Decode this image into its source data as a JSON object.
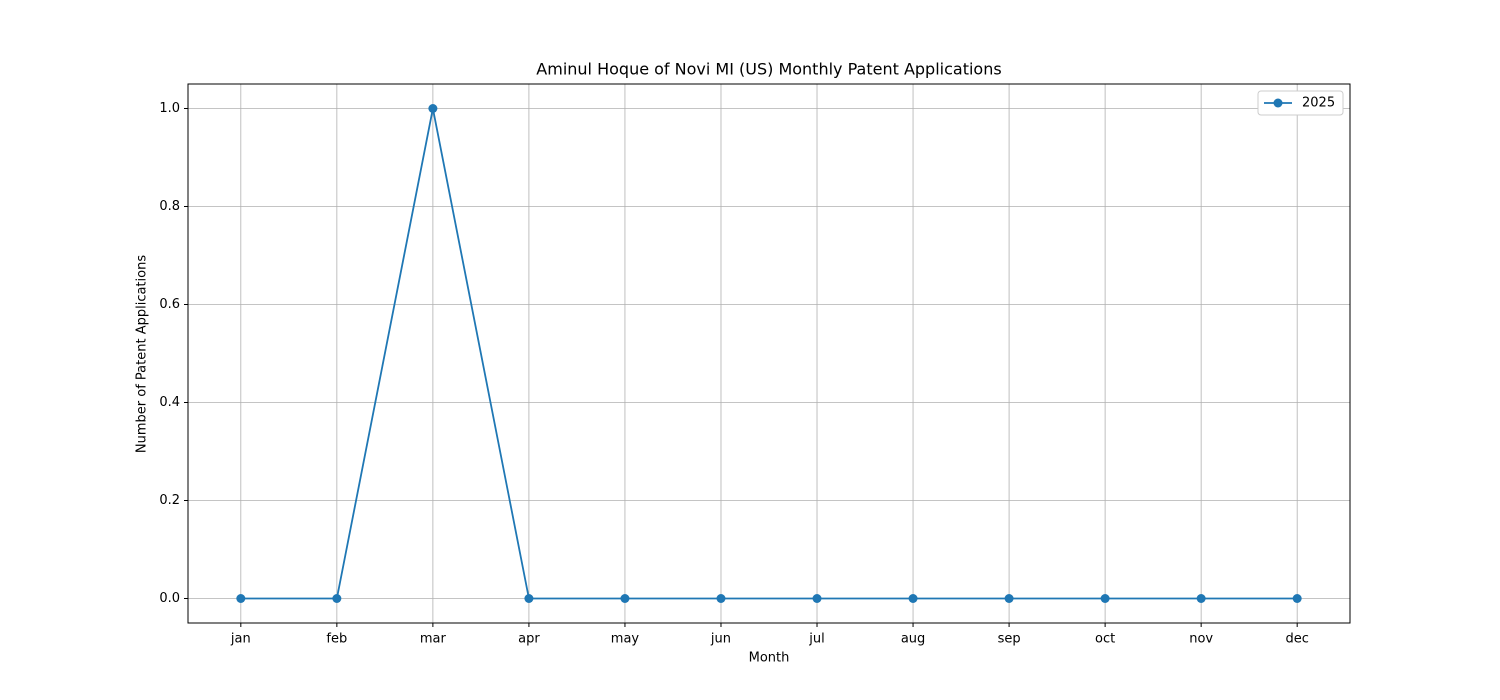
{
  "chart_data": {
    "type": "line",
    "title": "Aminul Hoque of Novi MI (US) Monthly Patent Applications",
    "x_label": "Month",
    "y_label": "Number of Patent Applications",
    "categories": [
      "jan",
      "feb",
      "mar",
      "apr",
      "may",
      "jun",
      "jul",
      "aug",
      "sep",
      "oct",
      "nov",
      "dec"
    ],
    "series": [
      {
        "name": "2025",
        "color": "#1f77b4",
        "values": [
          0,
          0,
          1,
          0,
          0,
          0,
          0,
          0,
          0,
          0,
          0,
          0
        ]
      }
    ],
    "ylim": [
      -0.05,
      1.05
    ],
    "yticks": [
      {
        "value": 0,
        "label": "0.0"
      },
      {
        "value": 0.2,
        "label": "0.2"
      },
      {
        "value": 0.4,
        "label": "0.4"
      },
      {
        "value": 0.6,
        "label": "0.6"
      },
      {
        "value": 0.8,
        "label": "0.8"
      },
      {
        "value": 1,
        "label": "1.0"
      }
    ],
    "grid": true,
    "legend": "upper right"
  }
}
